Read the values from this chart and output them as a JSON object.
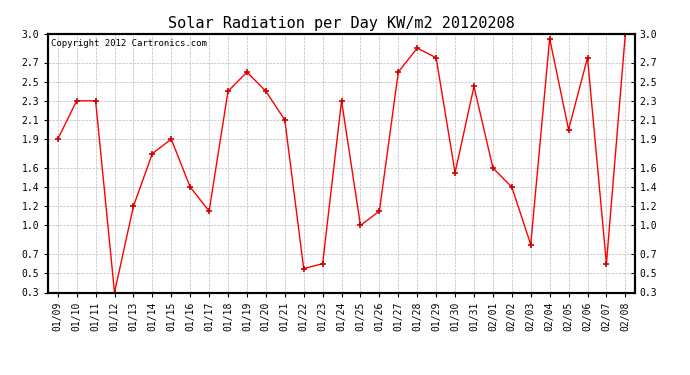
{
  "title": "Solar Radiation per Day KW/m2 20120208",
  "copyright": "Copyright 2012 Cartronics.com",
  "dates": [
    "01/09",
    "01/10",
    "01/11",
    "01/12",
    "01/13",
    "01/14",
    "01/15",
    "01/16",
    "01/17",
    "01/18",
    "01/19",
    "01/20",
    "01/21",
    "01/22",
    "01/23",
    "01/24",
    "01/25",
    "01/26",
    "01/27",
    "01/28",
    "01/29",
    "01/30",
    "01/31",
    "02/01",
    "02/02",
    "02/03",
    "02/04",
    "02/05",
    "02/06",
    "02/07",
    "02/08"
  ],
  "values": [
    1.9,
    2.3,
    2.3,
    0.3,
    1.2,
    1.75,
    1.9,
    1.4,
    1.15,
    2.4,
    2.6,
    2.4,
    2.1,
    0.55,
    0.6,
    2.3,
    1.0,
    1.15,
    2.6,
    2.85,
    2.75,
    1.55,
    2.45,
    1.6,
    1.4,
    0.8,
    2.95,
    2.0,
    2.75,
    0.6,
    3.0
  ],
  "line_color": "#ff0000",
  "marker": "+",
  "marker_color": "#cc0000",
  "background_color": "#ffffff",
  "plot_bg_color": "#ffffff",
  "grid_color": "#aaaaaa",
  "title_fontsize": 11,
  "copyright_fontsize": 6.5,
  "tick_fontsize": 7,
  "ylim": [
    0.3,
    3.0
  ],
  "yticks": [
    0.3,
    0.5,
    0.7,
    1.0,
    1.2,
    1.4,
    1.6,
    1.9,
    2.1,
    2.3,
    2.5,
    2.7,
    3.0
  ]
}
